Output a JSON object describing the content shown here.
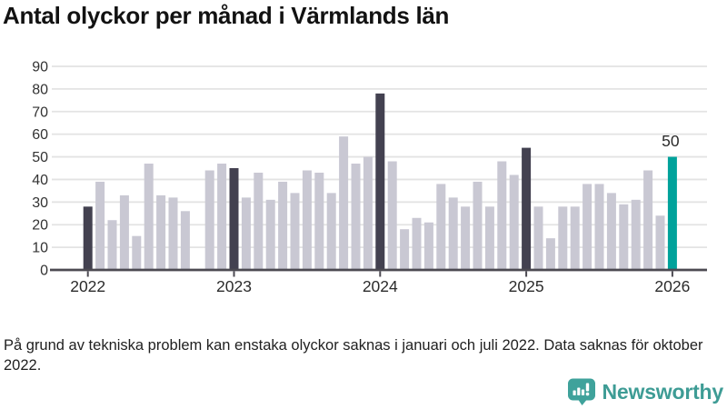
{
  "header": {
    "title": "Antal olyckor per månad i Värmlands län"
  },
  "chart_data": {
    "type": "bar",
    "title": "Antal olyckor per månad i Värmlands län",
    "xlabel": "",
    "ylabel": "",
    "ylim": [
      0,
      90
    ],
    "yticks": [
      0,
      10,
      20,
      30,
      40,
      50,
      60,
      70,
      80,
      90
    ],
    "grid": "horizontal",
    "x_tick_labels": [
      "2022",
      "2023",
      "2024",
      "2025",
      "2026"
    ],
    "missing_data_months": [
      "oktober 2022"
    ],
    "series": [
      {
        "year": "2022",
        "values": [
          28,
          39,
          22,
          33,
          15,
          47,
          33,
          32,
          26,
          null,
          44,
          47
        ]
      },
      {
        "year": "2023",
        "values": [
          45,
          32,
          43,
          31,
          39,
          34,
          44,
          43,
          34,
          59,
          47,
          50
        ]
      },
      {
        "year": "2024",
        "values": [
          78,
          48,
          18,
          23,
          21,
          38,
          32,
          28,
          39,
          28,
          48,
          42
        ]
      },
      {
        "year": "2025",
        "values": [
          54,
          28,
          14,
          28,
          28,
          38,
          38,
          34,
          29,
          31,
          44,
          24
        ]
      },
      {
        "year": "2026",
        "values": [
          50
        ]
      }
    ],
    "highlight": {
      "year": "2026",
      "month": "januari",
      "value": 50,
      "label": "50"
    },
    "colors": {
      "default": "#c9c8d3",
      "january": "#434150",
      "highlight": "#00a29b",
      "grid": "#e3e3e3",
      "axis": "#4c4a52",
      "tick_text": "#2b2b2b",
      "ytick_text": "#333333"
    }
  },
  "footnote": {
    "text": "På grund av tekniska problem kan enstaka olyckor saknas i januari och juli 2022. Data saknas för oktober 2022."
  },
  "brand": {
    "name": "Newsworthy",
    "color": "#3e9c95"
  }
}
